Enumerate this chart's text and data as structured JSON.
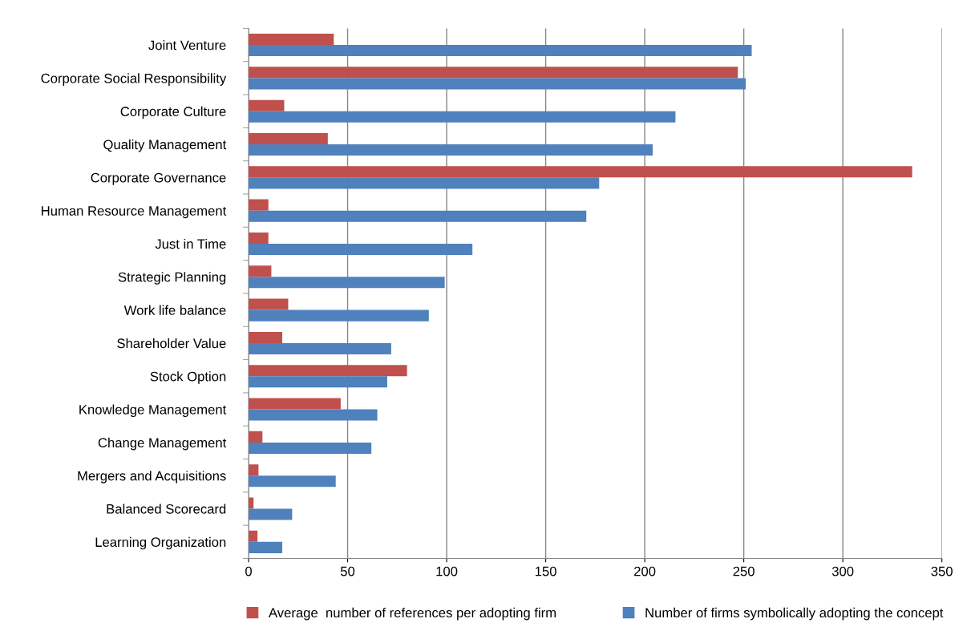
{
  "chart_data": {
    "type": "bar",
    "orientation": "horizontal",
    "categories": [
      "Joint Venture",
      "Corporate Social Responsibility",
      "Corporate Culture",
      "Quality Management",
      "Corporate Governance",
      "Human Resource Management",
      "Just in Time",
      "Strategic Planning",
      "Work life balance",
      "Shareholder Value",
      "Stock Option",
      "Knowledge Management",
      "Change Management",
      "Mergers and Acquisitions",
      "Balanced Scorecard",
      "Learning Organization"
    ],
    "series": [
      {
        "name": "Average  number of references per adopting firm",
        "color": "#c0504d",
        "values": [
          43,
          247,
          18,
          40,
          335,
          10,
          10,
          11.5,
          20,
          17,
          80,
          46.5,
          7,
          5,
          2.5,
          4.5
        ]
      },
      {
        "name": "Number of firms symbolically adopting the concept",
        "color": "#4f81bd",
        "values": [
          254,
          251,
          215.5,
          204,
          177,
          170.5,
          113,
          99,
          91,
          72,
          70,
          65,
          62,
          44,
          22,
          17
        ]
      }
    ],
    "xlim": [
      0,
      350
    ],
    "xticks": [
      0,
      50,
      100,
      150,
      200,
      250,
      300,
      350
    ],
    "grid": "x",
    "legend": "bottom"
  }
}
